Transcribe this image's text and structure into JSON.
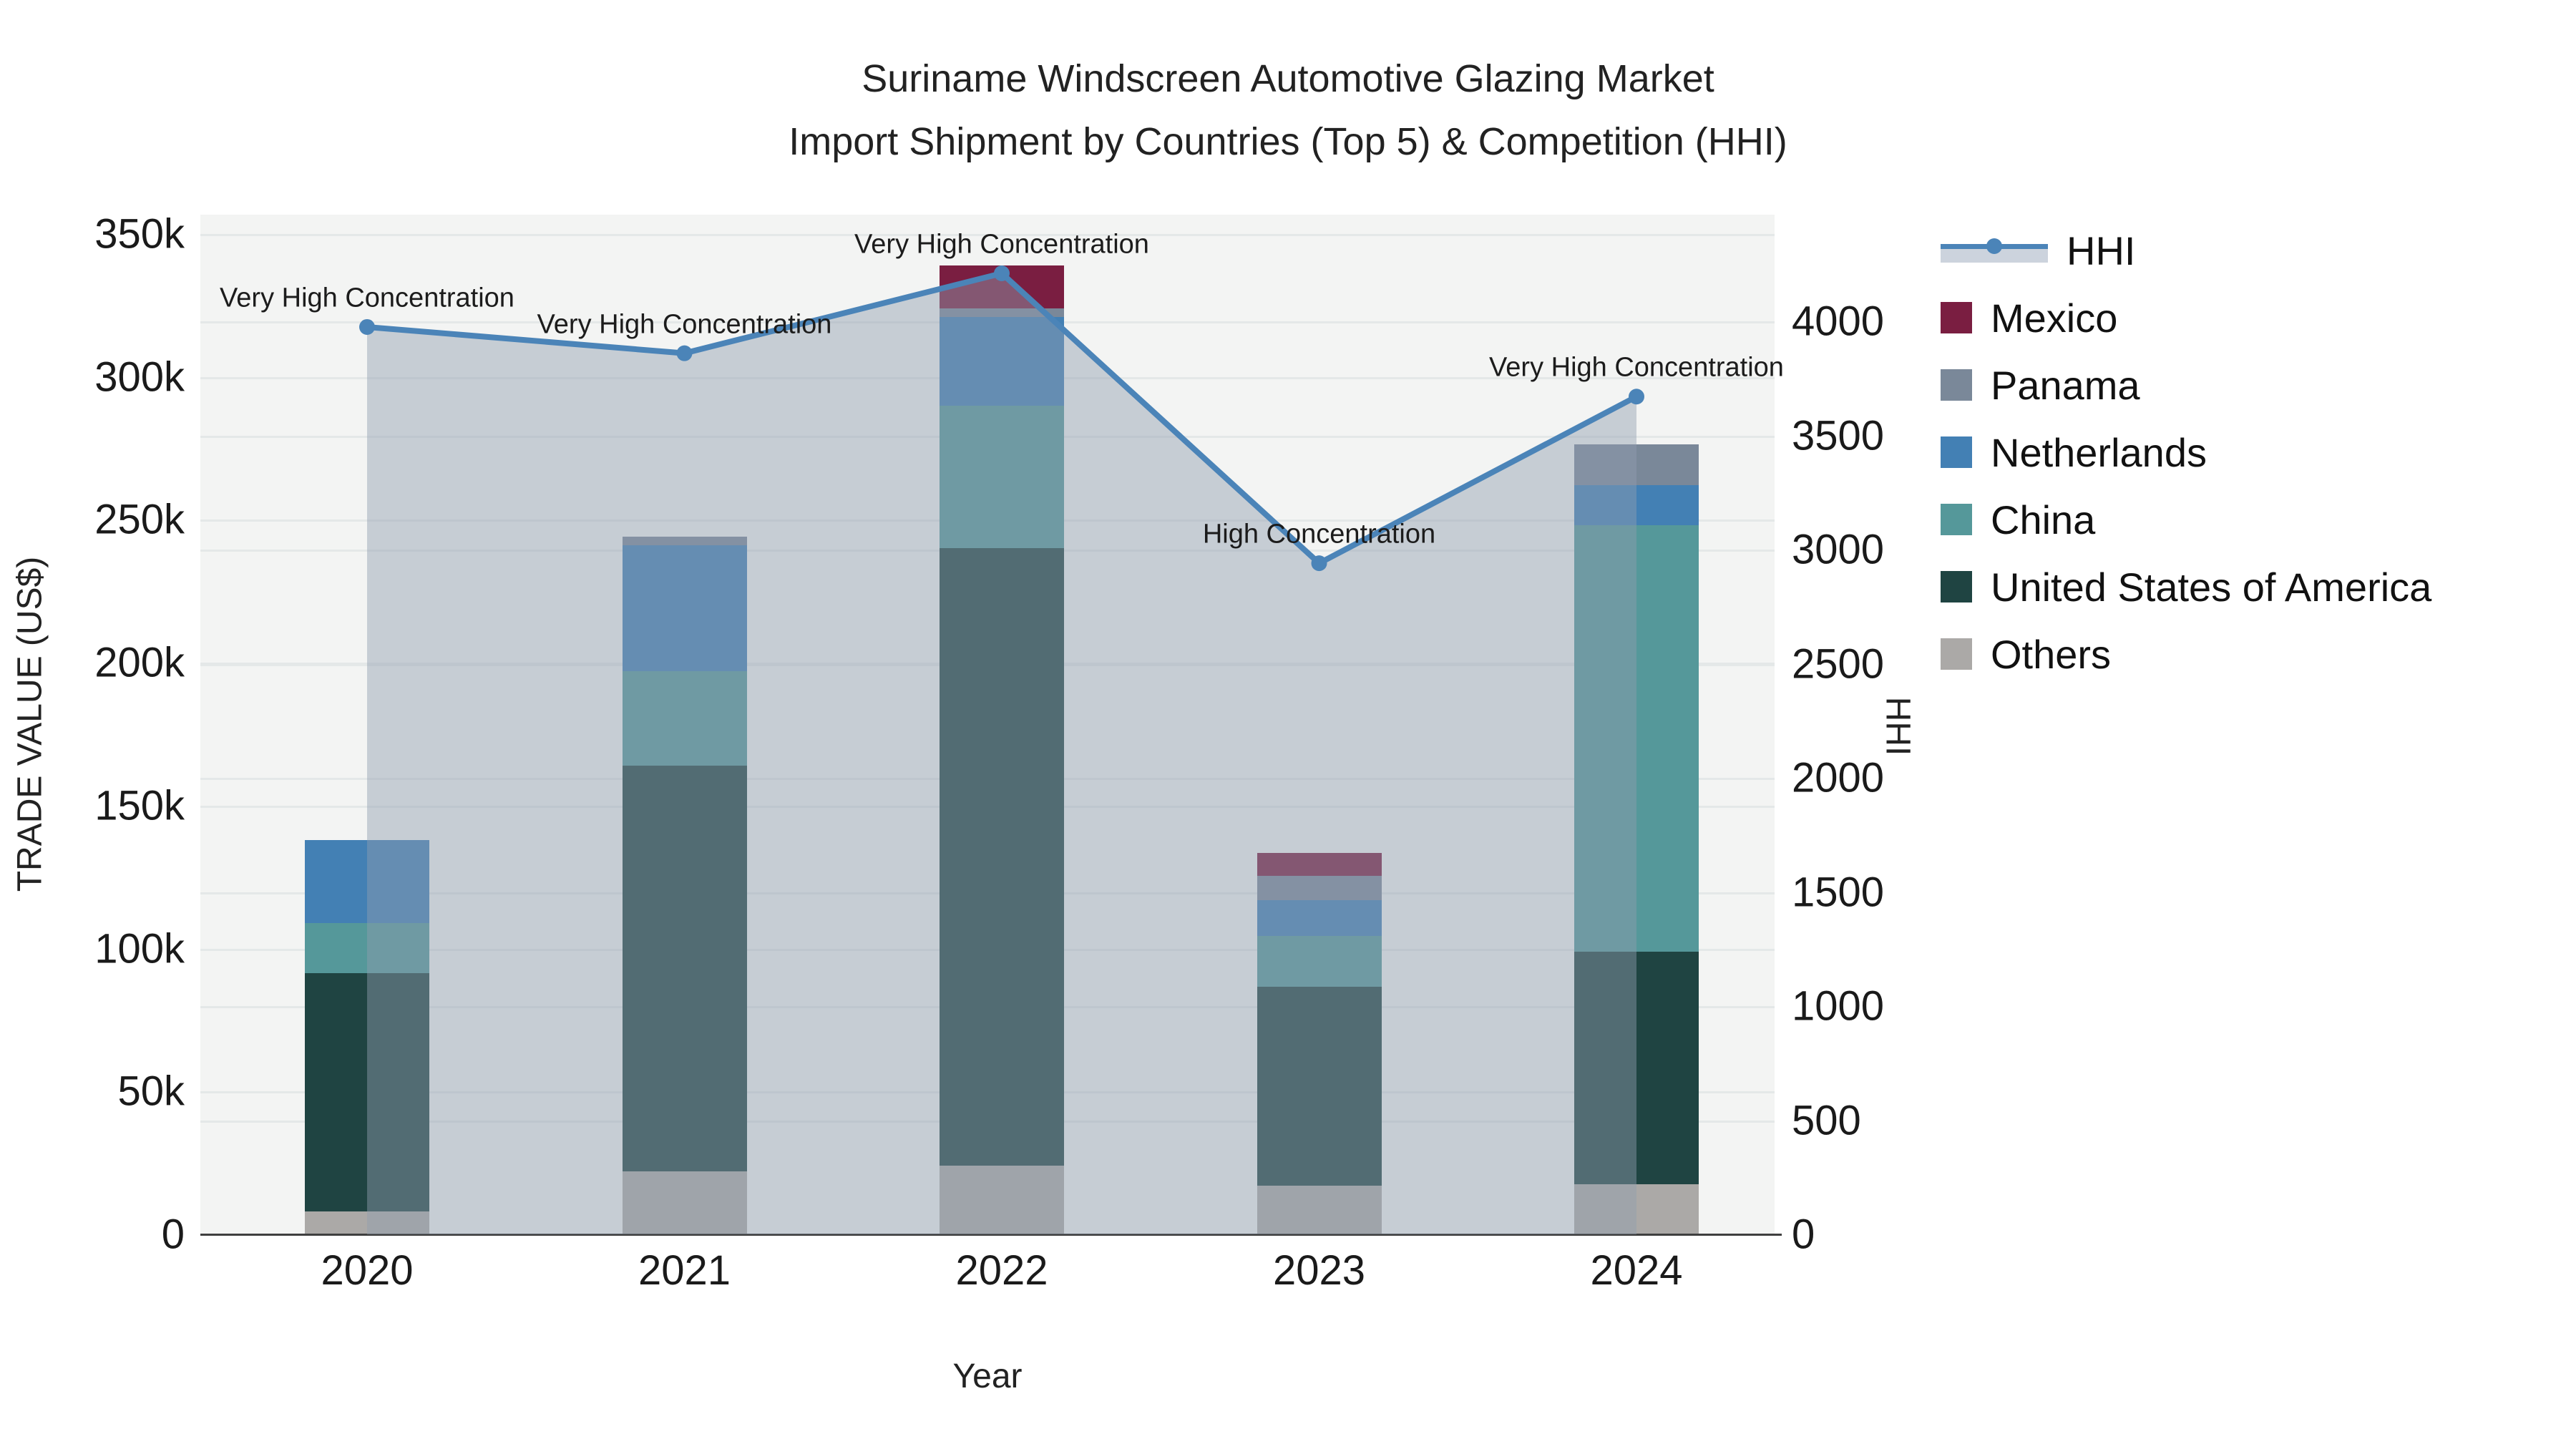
{
  "title": {
    "line1": "Suriname Windscreen Automotive Glazing Market",
    "line2": "Import Shipment by Countries (Top 5) & Competition (HHI)"
  },
  "axes": {
    "x_title": "Year",
    "y_left_title": "TRADE VALUE (US$)",
    "y_right_title": "HHI"
  },
  "legend": {
    "items": [
      {
        "label": "HHI",
        "type": "line",
        "color": "#4B84B8"
      },
      {
        "label": "Mexico",
        "type": "swatch",
        "color": "#7A1E41"
      },
      {
        "label": "Panama",
        "type": "swatch",
        "color": "#7A8899"
      },
      {
        "label": "Netherlands",
        "type": "swatch",
        "color": "#4380B4"
      },
      {
        "label": "China",
        "type": "swatch",
        "color": "#55989A"
      },
      {
        "label": "United States of America",
        "type": "swatch",
        "color": "#1F4442"
      },
      {
        "label": "Others",
        "type": "swatch",
        "color": "#ABA9A7"
      }
    ]
  },
  "chart_data": {
    "type": "bar+line",
    "title": "Suriname Windscreen Automotive Glazing Market Import Shipment by Countries (Top 5) & Competition (HHI)",
    "xlabel": "Year",
    "ylabel_left": "TRADE VALUE (US$)",
    "ylabel_right": "HHI",
    "categories": [
      "2020",
      "2021",
      "2022",
      "2023",
      "2024"
    ],
    "value_unit": "thousand US$",
    "stacked": true,
    "grid": true,
    "legend_position": "right",
    "series": [
      {
        "name": "Others",
        "color": "#ABA9A7",
        "values": [
          8,
          22,
          24,
          17,
          17.5
        ]
      },
      {
        "name": "United States of America",
        "color": "#1F4442",
        "values": [
          83.5,
          142,
          216,
          69.5,
          81.5
        ]
      },
      {
        "name": "China",
        "color": "#55989A",
        "values": [
          17.5,
          33,
          50,
          18,
          149
        ]
      },
      {
        "name": "Netherlands",
        "color": "#4380B4",
        "values": [
          29,
          44,
          31,
          12.5,
          14
        ]
      },
      {
        "name": "Panama",
        "color": "#7A8899",
        "values": [
          0,
          3,
          3,
          8.5,
          14.5
        ]
      },
      {
        "name": "Mexico",
        "color": "#7A1E41",
        "values": [
          0,
          0,
          15,
          8,
          0
        ]
      }
    ],
    "bar_totals": [
      138,
      244,
      339,
      133.5,
      276.5
    ],
    "line_series": {
      "name": "HHI",
      "color": "#4B84B8",
      "fill": "tozeroy",
      "fill_color": "rgba(145,158,176,0.45)",
      "values": [
        3975,
        3860,
        4210,
        2940,
        3670
      ]
    },
    "annotations": [
      {
        "category": "2020",
        "text": "Very High Concentration"
      },
      {
        "category": "2021",
        "text": "Very High Concentration"
      },
      {
        "category": "2022",
        "text": "Very High Concentration"
      },
      {
        "category": "2023",
        "text": "High Concentration"
      },
      {
        "category": "2024",
        "text": "Very High Concentration"
      }
    ],
    "left_axis": {
      "range_k": [
        0,
        350
      ],
      "tick_values": [
        0,
        50,
        100,
        150,
        200,
        250,
        300,
        350
      ],
      "tick_labels": [
        "0",
        "50k",
        "100k",
        "150k",
        "200k",
        "250k",
        "300k",
        "350k"
      ]
    },
    "right_axis": {
      "range": [
        0,
        4470
      ],
      "tick_values": [
        0,
        500,
        1000,
        1500,
        2000,
        2500,
        3000,
        3500,
        4000
      ],
      "tick_labels": [
        "0",
        "500",
        "1000",
        "1500",
        "2000",
        "2500",
        "3000",
        "3500",
        "4000"
      ]
    }
  }
}
